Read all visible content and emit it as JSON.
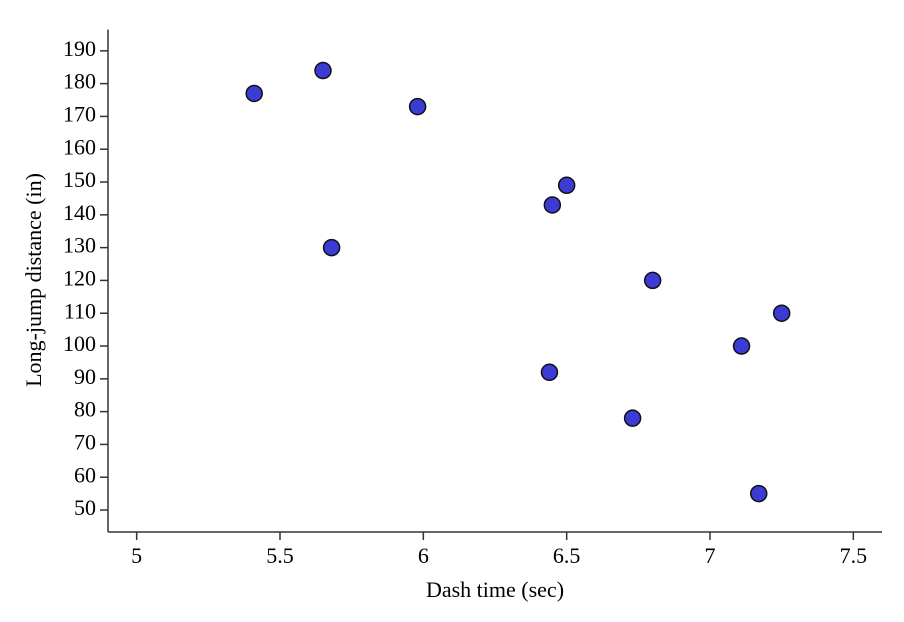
{
  "chart_data": {
    "type": "scatter",
    "x_label": "Dash time (sec)",
    "y_label": "Long-jump distance (in)",
    "x": [
      5.41,
      5.65,
      5.98,
      5.68,
      6.45,
      6.5,
      6.8,
      6.44,
      6.73,
      7.11,
      7.25,
      7.17
    ],
    "values": [
      177,
      184,
      173,
      130,
      143,
      149,
      120,
      92,
      78,
      100,
      110,
      55
    ],
    "color": "#3b3bd6",
    "xlim": [
      4.9,
      7.6
    ],
    "xticks": [
      5,
      5.5,
      6,
      6.5,
      7,
      7.5
    ],
    "ylim": [
      43.3,
      196.5
    ],
    "yticks": [
      50,
      60,
      70,
      80,
      90,
      100,
      110,
      120,
      130,
      140,
      150,
      160,
      170,
      180,
      190
    ],
    "grid": false
  }
}
